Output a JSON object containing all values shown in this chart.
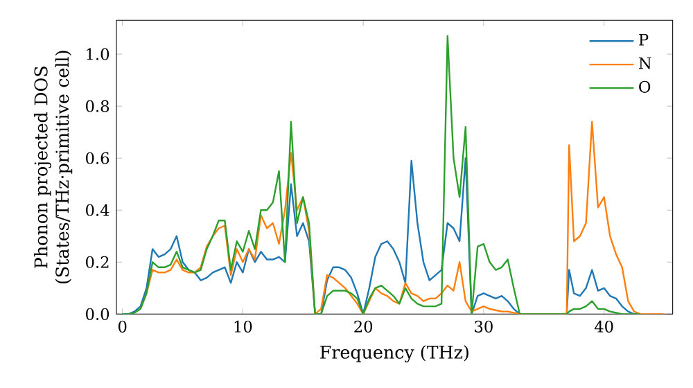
{
  "chart_data": {
    "type": "line",
    "xlabel": "Frequency (THz)",
    "ylabel": "Phonon projected DOS (States/THz·primitive cell)",
    "x": [
      0,
      0.5,
      1,
      1.5,
      2,
      2.5,
      3,
      3.5,
      4,
      4.5,
      5,
      5.5,
      6,
      6.5,
      7,
      7.5,
      8,
      8.5,
      9,
      9.5,
      10,
      10.5,
      11,
      11.5,
      12,
      12.5,
      13,
      13.5,
      14,
      14.5,
      15,
      15.5,
      16,
      16.5,
      17,
      17.5,
      18,
      18.5,
      19,
      19.5,
      20,
      20.5,
      21,
      21.5,
      22,
      22.5,
      23,
      23.5,
      24,
      24.5,
      25,
      25.5,
      26,
      26.5,
      27,
      27.5,
      28,
      28.5,
      29,
      29.5,
      30,
      30.5,
      31,
      31.5,
      32,
      32.5,
      33,
      34,
      35,
      36,
      36.9,
      37.1,
      37.5,
      38,
      38.5,
      39,
      39.5,
      40,
      40.5,
      41,
      41.5,
      42,
      42.5,
      43,
      44,
      45
    ],
    "series": [
      {
        "name": "P",
        "color": "#1f77b4",
        "values": [
          0,
          0,
          0.01,
          0.03,
          0.1,
          0.25,
          0.22,
          0.23,
          0.25,
          0.3,
          0.2,
          0.17,
          0.16,
          0.13,
          0.14,
          0.16,
          0.17,
          0.18,
          0.12,
          0.2,
          0.16,
          0.25,
          0.2,
          0.24,
          0.21,
          0.21,
          0.22,
          0.2,
          0.5,
          0.3,
          0.35,
          0.28,
          0,
          0,
          0.13,
          0.18,
          0.18,
          0.17,
          0.14,
          0.08,
          0,
          0.1,
          0.22,
          0.27,
          0.28,
          0.25,
          0.2,
          0.12,
          0.59,
          0.35,
          0.2,
          0.13,
          0.15,
          0.17,
          0.35,
          0.33,
          0.28,
          0.6,
          0,
          0.07,
          0.08,
          0.07,
          0.06,
          0.07,
          0.05,
          0.02,
          0,
          0,
          0,
          0,
          0,
          0.17,
          0.08,
          0.07,
          0.1,
          0.17,
          0.09,
          0.1,
          0.07,
          0.06,
          0.03,
          0.01,
          0,
          0,
          null,
          null
        ]
      },
      {
        "name": "N",
        "color": "#ff7f0e",
        "values": [
          null,
          null,
          null,
          0.02,
          0.08,
          0.17,
          0.16,
          0.16,
          0.17,
          0.21,
          0.17,
          0.16,
          0.16,
          0.18,
          0.26,
          0.3,
          0.33,
          0.34,
          0.15,
          0.25,
          0.2,
          0.25,
          0.21,
          0.38,
          0.33,
          0.35,
          0.27,
          0.4,
          0.62,
          0.4,
          0.45,
          0.32,
          0,
          0.02,
          0.15,
          0.14,
          0.12,
          0.1,
          0.07,
          0.04,
          0,
          0.05,
          0.1,
          0.08,
          0.07,
          0.05,
          0.04,
          0.12,
          0.08,
          0.07,
          0.05,
          0.06,
          0.06,
          0.08,
          0.11,
          0.09,
          0.2,
          0.05,
          0.01,
          0.02,
          0.03,
          0.02,
          0.015,
          0.01,
          0.01,
          0.005,
          0,
          0,
          0,
          0,
          0,
          0.65,
          0.28,
          0.3,
          0.35,
          0.74,
          0.41,
          0.45,
          0.3,
          0.23,
          0.18,
          0.05,
          0.01,
          0,
          0,
          0
        ]
      },
      {
        "name": "O",
        "color": "#2ca02c",
        "values": [
          0,
          0,
          0.005,
          0.02,
          0.08,
          0.2,
          0.18,
          0.18,
          0.19,
          0.24,
          0.18,
          0.17,
          0.16,
          0.17,
          0.25,
          0.3,
          0.36,
          0.36,
          0.17,
          0.28,
          0.24,
          0.32,
          0.25,
          0.4,
          0.4,
          0.43,
          0.55,
          0.2,
          0.74,
          0.35,
          0.45,
          0.35,
          0,
          0,
          0.07,
          0.09,
          0.09,
          0.09,
          0.08,
          0.06,
          0,
          0.06,
          0.1,
          0.11,
          0.09,
          0.07,
          0.04,
          0.1,
          0.06,
          0.04,
          0.03,
          0.03,
          0.03,
          0.04,
          1.07,
          0.6,
          0.45,
          0.72,
          0,
          0.26,
          0.27,
          0.2,
          0.17,
          0.18,
          0.21,
          0.1,
          0,
          0,
          0,
          0,
          0,
          0.01,
          0.02,
          0.02,
          0.03,
          0.05,
          0.02,
          0.02,
          0.01,
          0.005,
          0,
          0,
          0,
          0,
          null,
          null
        ]
      }
    ],
    "xlim": [
      -0.5,
      45.7
    ],
    "ylim": [
      0,
      1.13
    ],
    "xticks": [
      0,
      10,
      20,
      30,
      40
    ],
    "yticks": [
      {
        "value": 0,
        "label": "0.0"
      },
      0.2,
      0.4,
      0.6,
      0.8,
      {
        "value": 1,
        "label": "1.0"
      }
    ],
    "legend": "top right",
    "grid": false,
    "marker": "none",
    "line_style": "solid"
  }
}
